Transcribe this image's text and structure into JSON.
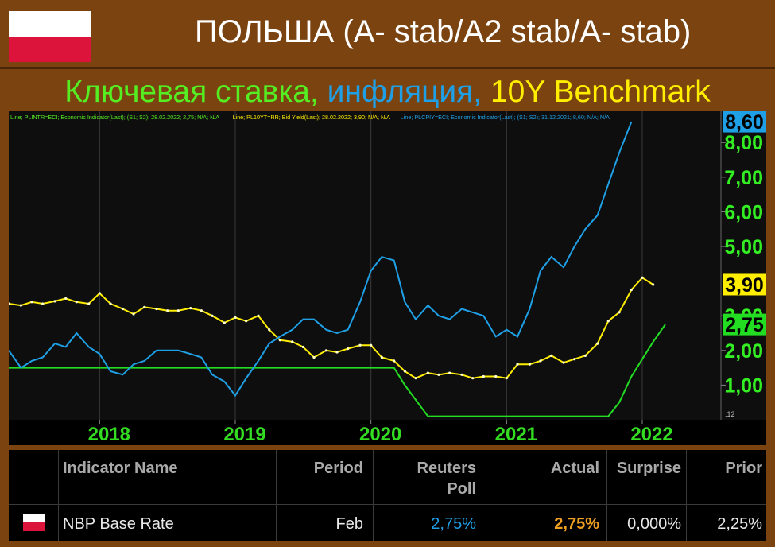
{
  "header": {
    "title": "ПОЛЬША (A- stab/A2 stab/A- stab)",
    "subtitle_part1": "Ключевая ставка, ",
    "subtitle_part2": "инфляция, ",
    "subtitle_part3": "10Y Benchmark"
  },
  "chart_data": {
    "type": "line",
    "legend_text": [
      {
        "text": "Line; PLINTR=ECI; Economic Indicator(Last); (S1; S2); 28.02.2022; 2,75; N/A; N/A",
        "color": "#55ee22"
      },
      {
        "text": "Line; PL10YT=RR; Bid Yield(Last); 28.02.2022; 3,90; N/A; N/A",
        "color": "#ffee00"
      },
      {
        "text": "Line; PLCPIY=ECI; Economic Indicator(Last); (S1; S2); 31.12.2021; 8,60; N/A; N/A",
        "color": "#1fa0e6"
      }
    ],
    "x_ticks": [
      "2018",
      "2019",
      "2020",
      "2021",
      "2022"
    ],
    "y_ticks": [
      "1,00",
      "2,00",
      "3,00",
      "4,00",
      "5,00",
      "6,00",
      "7,00",
      "8,00"
    ],
    "y_corner_label": ".12",
    "ylim": [
      0.0,
      8.9
    ],
    "xlim": [
      2017.33,
      2022.58
    ],
    "series": [
      {
        "name": "PLINTR=ECI",
        "color": "#22dd22",
        "last_label": "2,75",
        "points": [
          [
            2017.33,
            1.5
          ],
          [
            2020.17,
            1.5
          ],
          [
            2020.25,
            1.0
          ],
          [
            2020.42,
            0.1
          ],
          [
            2021.75,
            0.1
          ],
          [
            2021.83,
            0.5
          ],
          [
            2021.92,
            1.25
          ],
          [
            2022.0,
            1.75
          ],
          [
            2022.08,
            2.25
          ],
          [
            2022.17,
            2.75
          ]
        ]
      },
      {
        "name": "PL10YT=RR",
        "color": "#ffee00",
        "last_label": "3,90",
        "points": [
          [
            2017.33,
            3.35
          ],
          [
            2017.42,
            3.3
          ],
          [
            2017.5,
            3.4
          ],
          [
            2017.58,
            3.35
          ],
          [
            2017.67,
            3.42
          ],
          [
            2017.75,
            3.5
          ],
          [
            2017.83,
            3.4
          ],
          [
            2017.92,
            3.35
          ],
          [
            2018.0,
            3.65
          ],
          [
            2018.08,
            3.35
          ],
          [
            2018.17,
            3.2
          ],
          [
            2018.25,
            3.05
          ],
          [
            2018.33,
            3.25
          ],
          [
            2018.42,
            3.2
          ],
          [
            2018.5,
            3.15
          ],
          [
            2018.58,
            3.15
          ],
          [
            2018.67,
            3.22
          ],
          [
            2018.75,
            3.15
          ],
          [
            2018.83,
            3.0
          ],
          [
            2018.92,
            2.8
          ],
          [
            2019.0,
            2.95
          ],
          [
            2019.08,
            2.85
          ],
          [
            2019.17,
            3.0
          ],
          [
            2019.25,
            2.6
          ],
          [
            2019.33,
            2.3
          ],
          [
            2019.42,
            2.25
          ],
          [
            2019.5,
            2.1
          ],
          [
            2019.58,
            1.8
          ],
          [
            2019.67,
            2.0
          ],
          [
            2019.75,
            1.95
          ],
          [
            2019.83,
            2.05
          ],
          [
            2019.92,
            2.15
          ],
          [
            2020.0,
            2.15
          ],
          [
            2020.08,
            1.8
          ],
          [
            2020.17,
            1.7
          ],
          [
            2020.25,
            1.4
          ],
          [
            2020.33,
            1.2
          ],
          [
            2020.42,
            1.35
          ],
          [
            2020.5,
            1.3
          ],
          [
            2020.58,
            1.35
          ],
          [
            2020.67,
            1.3
          ],
          [
            2020.75,
            1.2
          ],
          [
            2020.83,
            1.25
          ],
          [
            2020.92,
            1.25
          ],
          [
            2021.0,
            1.2
          ],
          [
            2021.08,
            1.6
          ],
          [
            2021.17,
            1.6
          ],
          [
            2021.25,
            1.7
          ],
          [
            2021.33,
            1.85
          ],
          [
            2021.42,
            1.65
          ],
          [
            2021.5,
            1.75
          ],
          [
            2021.58,
            1.85
          ],
          [
            2021.67,
            2.2
          ],
          [
            2021.75,
            2.85
          ],
          [
            2021.83,
            3.1
          ],
          [
            2021.92,
            3.75
          ],
          [
            2022.0,
            4.1
          ],
          [
            2022.08,
            3.9
          ]
        ]
      },
      {
        "name": "PLCPIY=ECI",
        "color": "#1fa0e6",
        "last_label": "8,60",
        "points": [
          [
            2017.33,
            2.0
          ],
          [
            2017.42,
            1.5
          ],
          [
            2017.5,
            1.7
          ],
          [
            2017.58,
            1.8
          ],
          [
            2017.67,
            2.2
          ],
          [
            2017.75,
            2.1
          ],
          [
            2017.83,
            2.5
          ],
          [
            2017.92,
            2.1
          ],
          [
            2018.0,
            1.9
          ],
          [
            2018.08,
            1.4
          ],
          [
            2018.17,
            1.3
          ],
          [
            2018.25,
            1.6
          ],
          [
            2018.33,
            1.7
          ],
          [
            2018.42,
            2.0
          ],
          [
            2018.5,
            2.0
          ],
          [
            2018.58,
            2.0
          ],
          [
            2018.67,
            1.9
          ],
          [
            2018.75,
            1.8
          ],
          [
            2018.83,
            1.3
          ],
          [
            2018.92,
            1.1
          ],
          [
            2019.0,
            0.7
          ],
          [
            2019.08,
            1.2
          ],
          [
            2019.17,
            1.7
          ],
          [
            2019.25,
            2.2
          ],
          [
            2019.33,
            2.4
          ],
          [
            2019.42,
            2.6
          ],
          [
            2019.5,
            2.9
          ],
          [
            2019.58,
            2.9
          ],
          [
            2019.67,
            2.6
          ],
          [
            2019.75,
            2.5
          ],
          [
            2019.83,
            2.6
          ],
          [
            2019.92,
            3.4
          ],
          [
            2020.0,
            4.3
          ],
          [
            2020.08,
            4.7
          ],
          [
            2020.17,
            4.6
          ],
          [
            2020.25,
            3.4
          ],
          [
            2020.33,
            2.9
          ],
          [
            2020.42,
            3.3
          ],
          [
            2020.5,
            3.0
          ],
          [
            2020.58,
            2.9
          ],
          [
            2020.67,
            3.2
          ],
          [
            2020.75,
            3.1
          ],
          [
            2020.83,
            3.0
          ],
          [
            2020.92,
            2.4
          ],
          [
            2021.0,
            2.6
          ],
          [
            2021.08,
            2.4
          ],
          [
            2021.17,
            3.2
          ],
          [
            2021.25,
            4.3
          ],
          [
            2021.33,
            4.7
          ],
          [
            2021.42,
            4.4
          ],
          [
            2021.5,
            5.0
          ],
          [
            2021.58,
            5.5
          ],
          [
            2021.67,
            5.9
          ],
          [
            2021.75,
            6.8
          ],
          [
            2021.83,
            7.7
          ],
          [
            2021.92,
            8.6
          ]
        ]
      }
    ]
  },
  "table": {
    "headers": [
      "Indicator Name",
      "Period",
      "Reuters Poll",
      "Actual",
      "Surprise",
      "Prior"
    ],
    "reuters_line1": "Reuters",
    "reuters_line2": "Poll",
    "row": {
      "indicator": "NBP Base Rate",
      "period": "Feb",
      "reuters_poll": "2,75%",
      "actual": "2,75%",
      "surprise": "0,000%",
      "prior": "2,25%"
    },
    "colors": {
      "poll": "#1fa0e6",
      "actual": "#f0a020"
    }
  }
}
